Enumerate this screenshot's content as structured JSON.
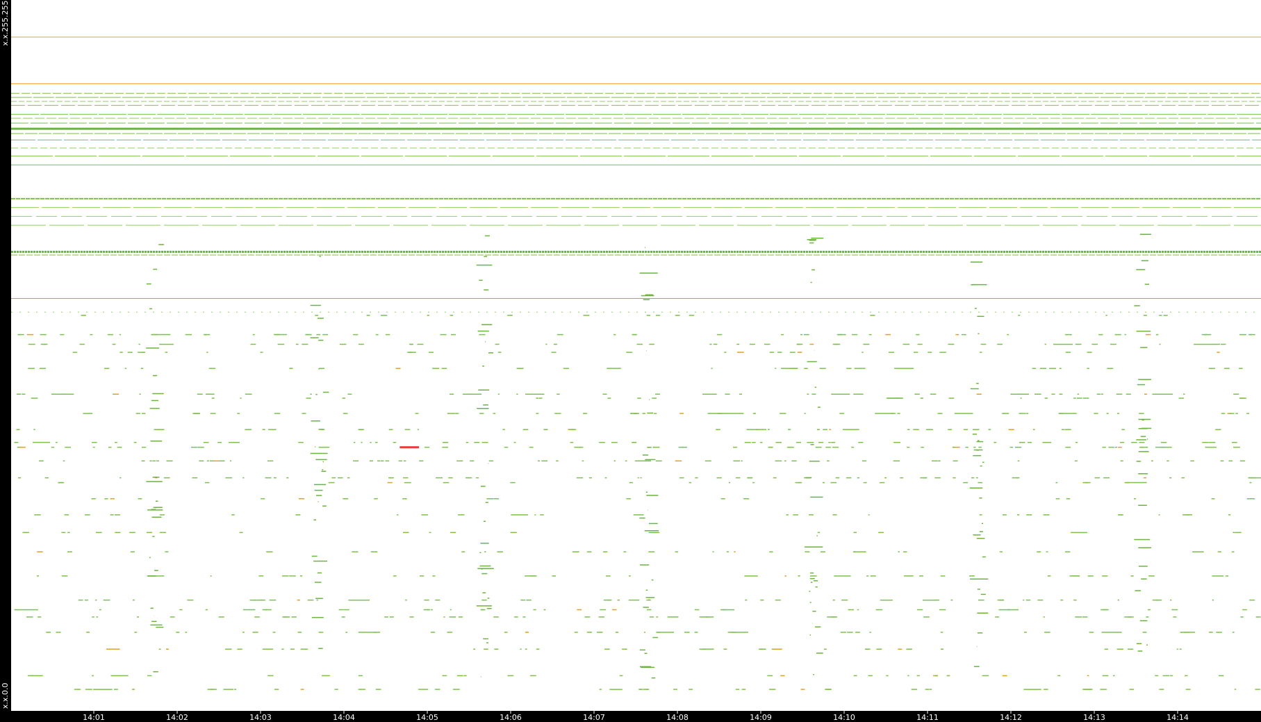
{
  "axis": {
    "top_label": "x.x.255.255",
    "bottom_label": "x.x.0.0"
  },
  "time_ticks": [
    "14:01",
    "14:02",
    "14:03",
    "14:04",
    "14:05",
    "14:06",
    "14:07",
    "14:08",
    "14:09",
    "14:10",
    "14:11",
    "14:12",
    "14:13",
    "14:14"
  ]
}
